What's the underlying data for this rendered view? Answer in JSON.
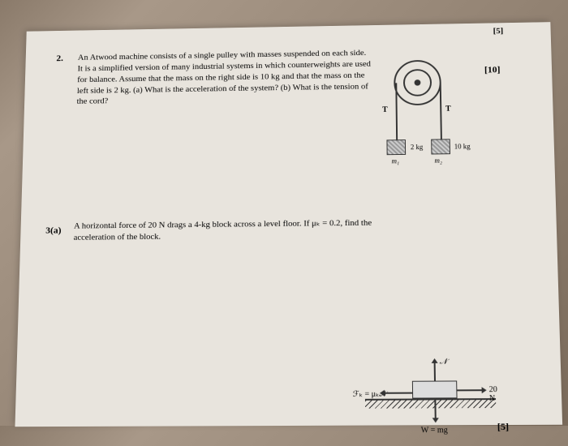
{
  "header": {
    "topMark": "[5]"
  },
  "problem1": {
    "number": "2.",
    "text": "An Atwood machine consists of a single pulley with masses suspended on each side. It is a simplified version of many industrial systems in which counterweights are used for balance. Assume that the mass on the right side is 10 kg and that the mass on the left side is 2 kg. (a) What is the acceleration of the system? (b) What is the tension of the cord?",
    "marks": "[10]",
    "diagram": {
      "tensionLeft": "T",
      "tensionRight": "T",
      "mass1": "2 kg",
      "mass2": "10 kg",
      "massLabel1": "m₁",
      "massLabel2": "m₂"
    }
  },
  "problem2": {
    "number": "3(a)",
    "text": "A horizontal force of 20 N drags a 4-kg block across a level floor. If μₖ = 0.2, find the acceleration of the block.",
    "marks": "[5]",
    "diagram": {
      "normal": "𝒩",
      "friction": "ℱₖ = μₖ𝒩",
      "force": "20 N",
      "weight": "W = mg"
    }
  },
  "colors": {
    "paperBg": "#e8e4dd",
    "text": "#222222",
    "line": "#333333"
  }
}
